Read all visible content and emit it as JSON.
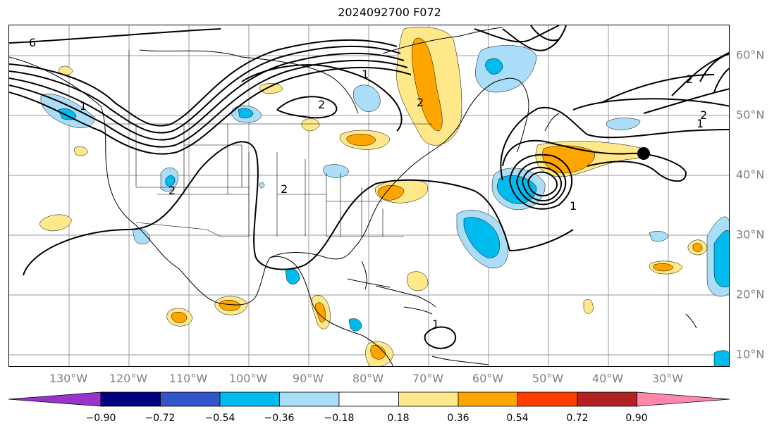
{
  "title": "2024092700 F072",
  "longitude_labels": [
    "130°W",
    "120°W",
    "110°W",
    "100°W",
    "90°W",
    "80°W",
    "70°W",
    "60°W",
    "50°W",
    "40°W",
    "30°W"
  ],
  "latitude_labels": [
    "60°N",
    "50°N",
    "40°N",
    "30°N",
    "20°N",
    "10°N"
  ],
  "contour_labels": [
    "6",
    "2",
    "1",
    "1",
    "2",
    "2",
    "1",
    "2",
    "2",
    "1",
    "1",
    "2"
  ],
  "colorbar": {
    "ticks": [
      "−0.90",
      "−0.72",
      "−0.54",
      "−0.36",
      "−0.18",
      "0.18",
      "0.36",
      "0.54",
      "0.72",
      "0.90"
    ],
    "colors": [
      "#9933cc",
      "#000080",
      "#3355cc",
      "#00bbee",
      "#aaddf7",
      "#ffffff",
      "#ffe88a",
      "#ffa500",
      "#ff3c00",
      "#b22222",
      "#ff88aa"
    ],
    "extend": "both"
  },
  "marker": "black-dot"
}
